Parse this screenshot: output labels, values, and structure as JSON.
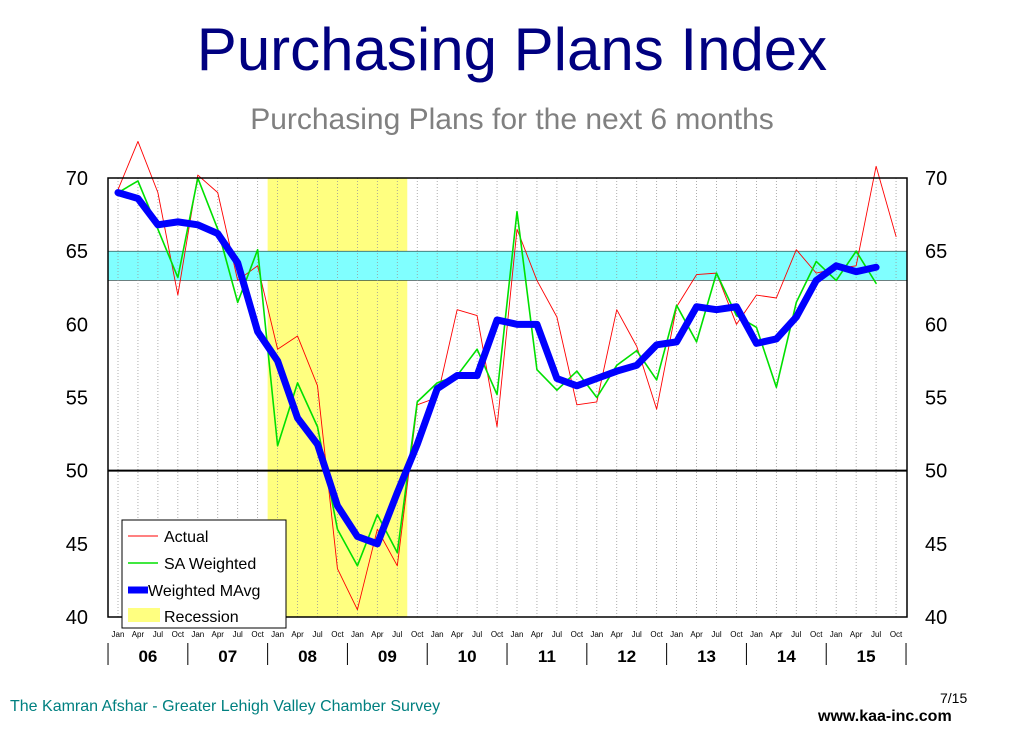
{
  "title": "Purchasing Plans Index",
  "subtitle": "Purchasing Plans for the next 6 months",
  "footer": {
    "left": "The Kamran Afshar - Greater Lehigh Valley Chamber Survey",
    "page": "7/15",
    "right": "www.kaa-inc.com"
  },
  "chart_data": {
    "type": "line",
    "ylim": [
      40,
      70
    ],
    "yticks": [
      40,
      45,
      50,
      55,
      60,
      65,
      70
    ],
    "grid": true,
    "quarter_labels": [
      "Jan",
      "Apr",
      "Jul",
      "Oct"
    ],
    "year_labels": [
      "06",
      "07",
      "08",
      "09",
      "10",
      "11",
      "12",
      "13",
      "14",
      "15"
    ],
    "reference_band": [
      63,
      65
    ],
    "reference_line": 50,
    "recession": {
      "start_index": 7,
      "end_index": 15
    },
    "legend": {
      "position": "bottom-left",
      "entries": [
        "Actual",
        "SA   Weighted",
        "Weighted   MAvg",
        "Recession"
      ]
    },
    "colors": {
      "actual": "#ff0000",
      "sa": "#00e000",
      "mavg": "#0000ff",
      "recession": "#ffff80",
      "band": "#80ffff",
      "title": "#000080"
    },
    "series": [
      {
        "name": "Actual",
        "values": [
          69.2,
          72.5,
          69.0,
          62.0,
          70.2,
          69.0,
          63.0,
          64.0,
          58.3,
          59.2,
          55.8,
          43.3,
          40.5,
          46.0,
          43.5,
          54.5,
          55.0,
          61.0,
          60.6,
          53.0,
          66.5,
          63.0,
          60.5,
          54.5,
          54.7,
          61.0,
          58.5,
          54.2,
          61.2,
          63.4,
          63.5,
          60.0,
          62.0,
          61.8,
          65.1,
          63.5,
          63.8,
          64.0,
          70.8,
          66.0
        ]
      },
      {
        "name": "SA   Weighted",
        "values": [
          69.0,
          69.8,
          66.5,
          63.2,
          70.0,
          66.5,
          61.5,
          65.1,
          51.7,
          56.0,
          53.0,
          46.0,
          43.5,
          47.0,
          44.4,
          54.7,
          56.0,
          56.5,
          58.3,
          55.2,
          67.7,
          56.9,
          55.5,
          56.8,
          55.0,
          57.2,
          58.2,
          56.2,
          61.3,
          58.8,
          63.5,
          60.6,
          59.8,
          55.7,
          61.5,
          64.3,
          63.0,
          65.0,
          62.8
        ]
      },
      {
        "name": "Weighted   MAvg",
        "values": [
          69.0,
          68.6,
          66.8,
          67.0,
          66.8,
          66.2,
          64.2,
          59.5,
          57.5,
          53.6,
          51.8,
          47.6,
          45.5,
          45.0,
          48.5,
          51.8,
          55.6,
          56.5,
          56.5,
          60.3,
          60.0,
          60.0,
          56.3,
          55.8,
          56.3,
          56.8,
          57.2,
          58.6,
          58.8,
          61.2,
          61.0,
          61.2,
          58.7,
          59.0,
          60.5,
          63.0,
          64.0,
          63.6,
          63.9
        ]
      }
    ]
  }
}
